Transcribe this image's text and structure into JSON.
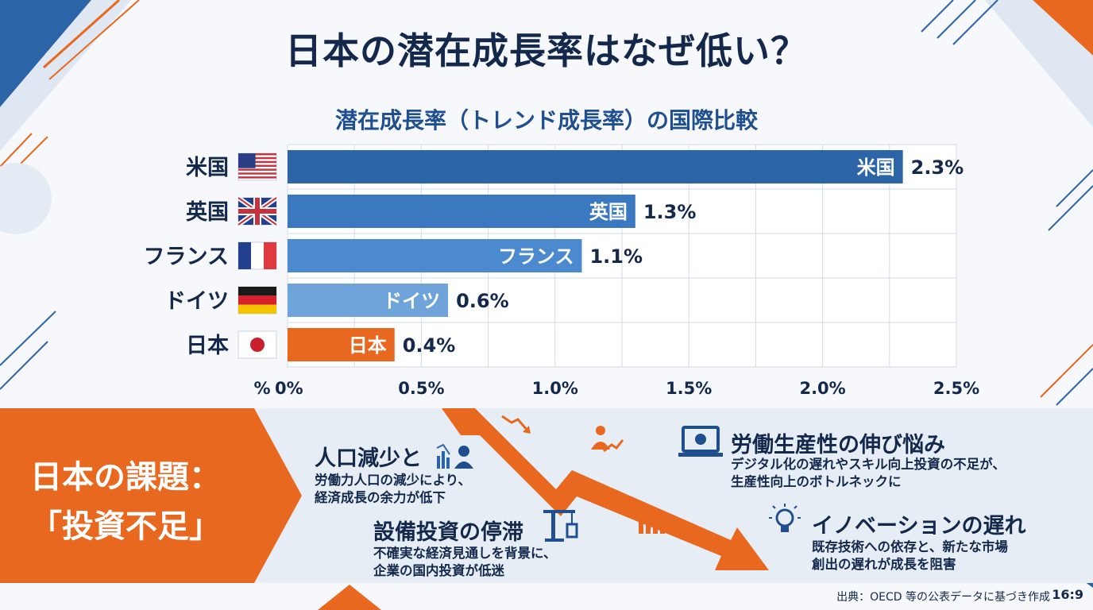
{
  "title": "日本の潜在成長率はなぜ低い？",
  "chart_data": {
    "type": "bar",
    "orientation": "horizontal",
    "title": "潜在成長率（トレンド成長率）の国際比較",
    "categories": [
      "米国",
      "英国",
      "フランス",
      "ドイツ",
      "日本"
    ],
    "values": [
      2.3,
      1.3,
      1.1,
      0.6,
      0.4
    ],
    "value_labels": [
      "2.3%",
      "1.3%",
      "1.1%",
      "0.6%",
      "0.4%"
    ],
    "xlabel": "%",
    "xlim": [
      0,
      2.5
    ],
    "xticks": [
      0,
      0.5,
      1.0,
      1.5,
      2.0,
      2.5
    ],
    "xtick_labels": [
      "0%",
      "0.5%",
      "1.0%",
      "1.5%",
      "2.0%",
      "2.5%"
    ],
    "grid": true,
    "bar_colors": [
      "#2c64a8",
      "#3a78bf",
      "#4c8ad0",
      "#6ea4d9",
      "#e8681f"
    ],
    "highlight_category": "日本"
  },
  "issues": {
    "heading_line1": "日本の課題：",
    "heading_line2": "「投資不足」",
    "factors": [
      {
        "title": "人口減少と",
        "text_line1": "労働力人口の減少により、",
        "text_line2": "経済成長の余力が低下",
        "icon": "population-chart-icon"
      },
      {
        "title": "設備投資の停滞",
        "text_line1": "不確実な経済見通しを背景に、",
        "text_line2": "企業の国内投資が低迷",
        "icon": "crane-icon"
      },
      {
        "title": "労働生産性の伸び悩み",
        "text_line1": "デジタル化の遅れやスキル向上投資の不足が、",
        "text_line2": "生産性向上のボトルネックに",
        "icon": "laptop-icon"
      },
      {
        "title": "イノベーションの遅れ",
        "text_line1": "既存技術への依存と、新たな市場",
        "text_line2": "創出の遅れが成長を阻害",
        "icon": "lightbulb-icon"
      }
    ]
  },
  "source": "出典：OECD 等の公表データに基づき作成",
  "aspect_ratio": "16:9",
  "colors": {
    "accent": "#e8681f",
    "navy": "#13284b",
    "blue": "#2c64a8"
  }
}
